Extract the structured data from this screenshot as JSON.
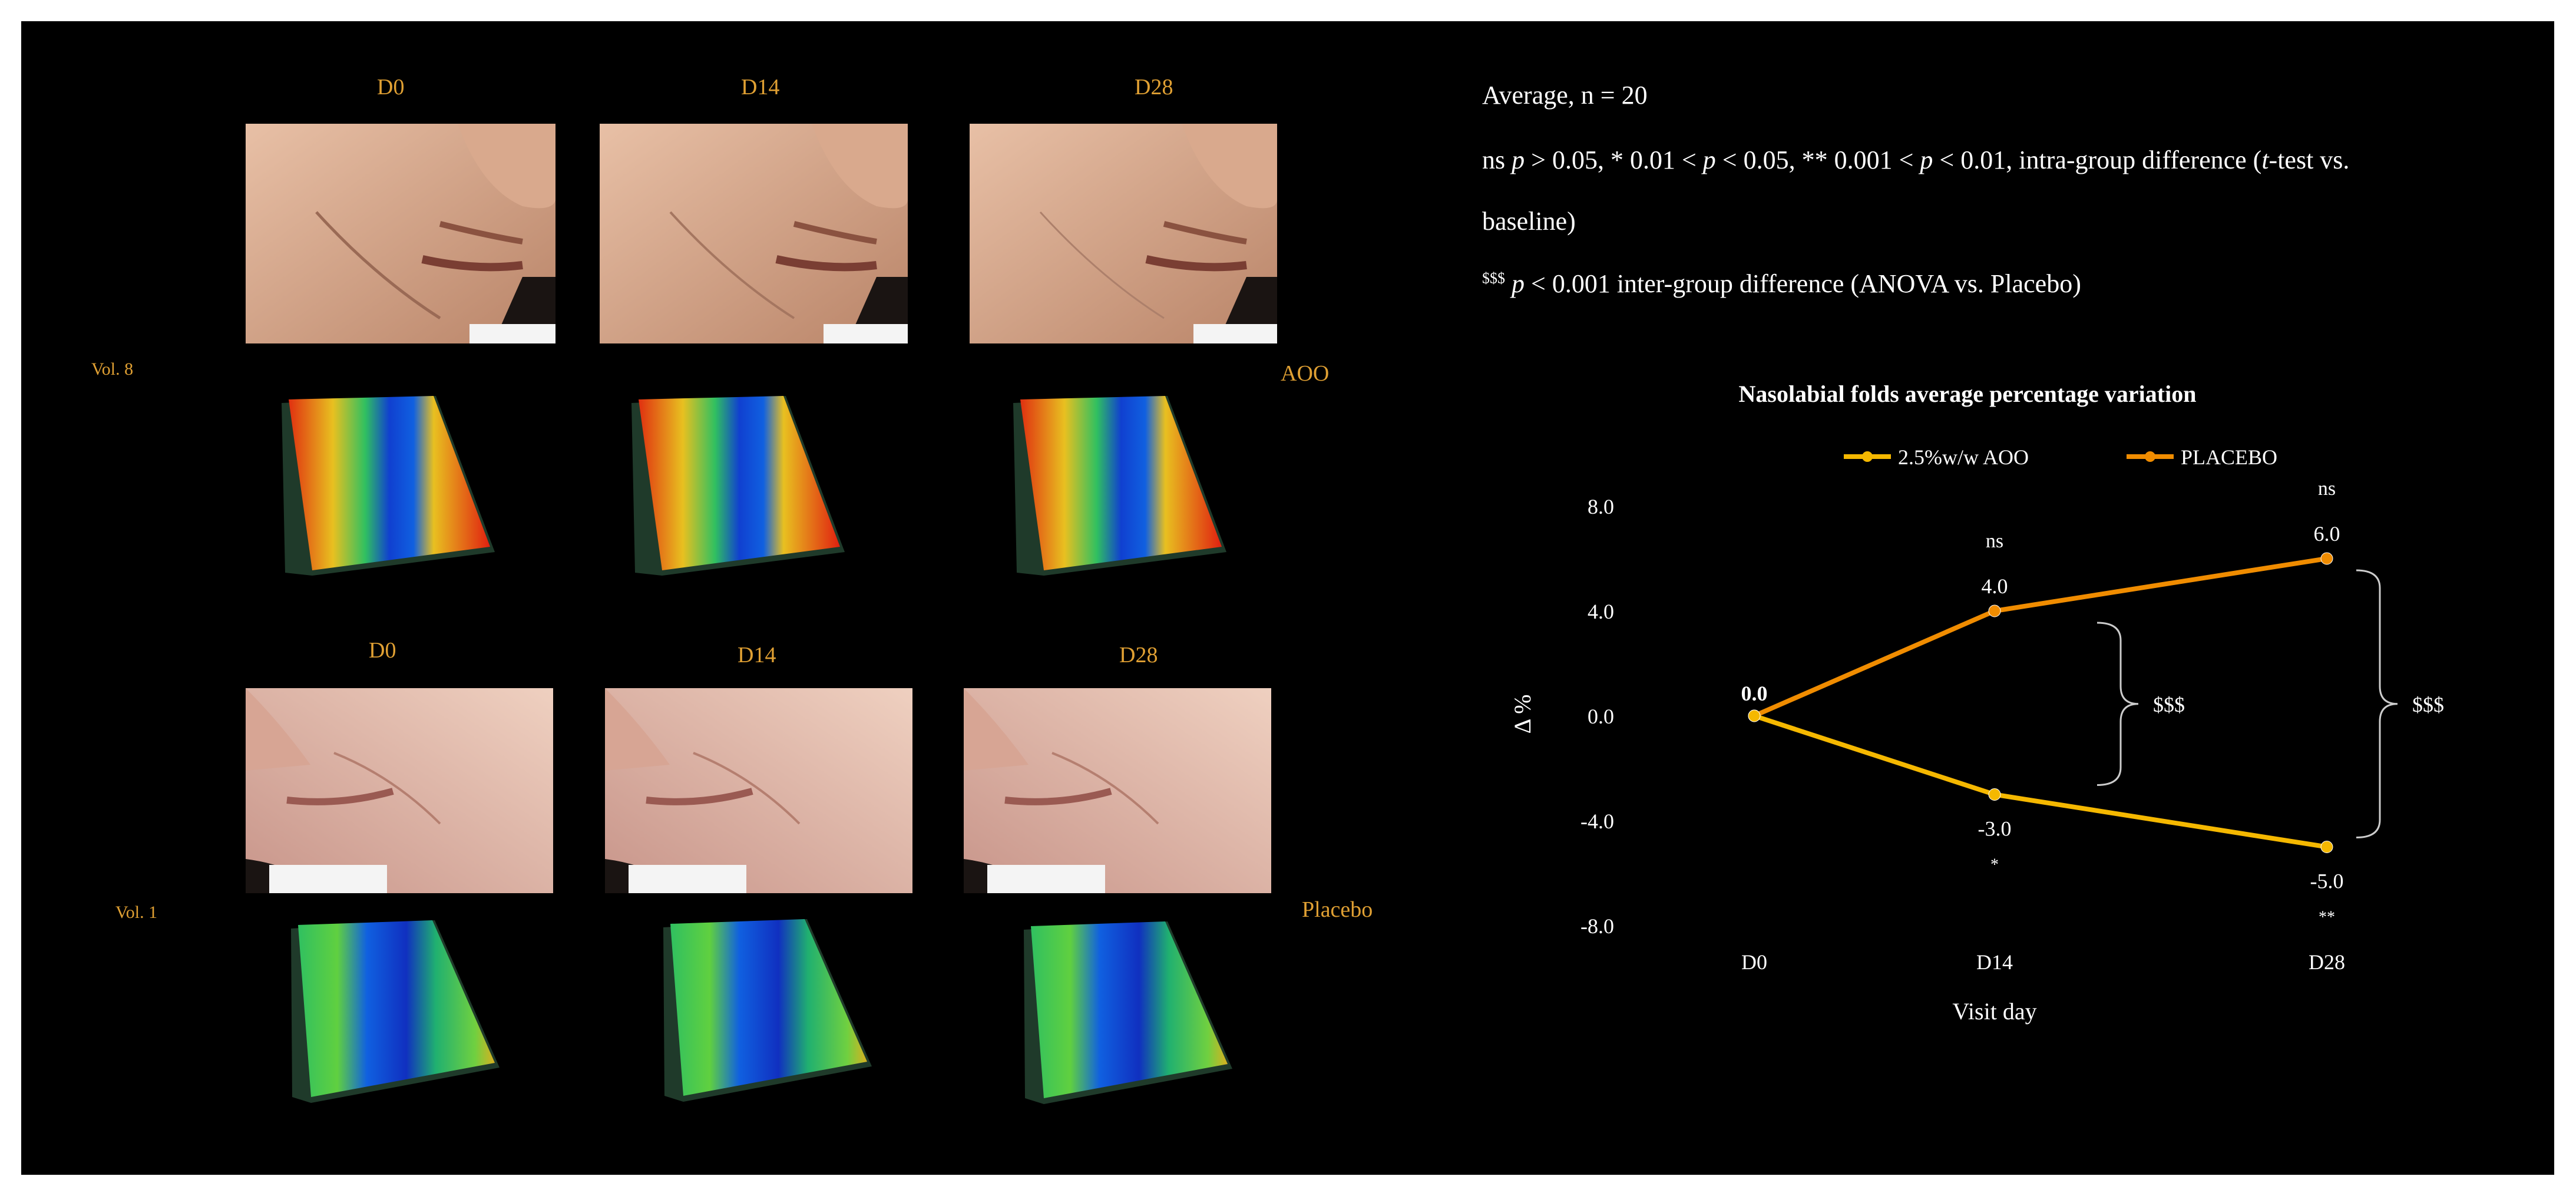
{
  "panels": {
    "aoo": {
      "subject": "Vol. 8",
      "group": "AOO",
      "days": [
        "D0",
        "D14",
        "D28"
      ]
    },
    "placebo": {
      "subject": "Vol. 1",
      "group": "Placebo",
      "days": [
        "D0",
        "D14",
        "D28"
      ]
    }
  },
  "notes": {
    "line1": "Average, n = 20",
    "line2_parts": [
      "ns ",
      "p",
      " > 0.05, * 0.01 < ",
      "p",
      " < 0.05, ** 0.001 < ",
      "p",
      " < 0.01, intra-group difference (",
      "t",
      "-test vs."
    ],
    "line3": "baseline)",
    "line4_sup": "$$$",
    "line4_parts": [
      " ",
      "p",
      " < 0.001 inter-group difference (ANOVA vs. Placebo)"
    ]
  },
  "colors": {
    "background": "#000000",
    "label_orange": "#e0a033",
    "aoo_series": "#f5b800",
    "placebo_series": "#f08c00",
    "text": "#ffffff"
  },
  "chart_data": {
    "type": "line",
    "title": "Nasolabial folds average percentage variation",
    "xlabel": "Visit day",
    "ylabel": "Δ %",
    "categories": [
      "D0",
      "D14",
      "D28"
    ],
    "ylim": [
      -8.0,
      8.0
    ],
    "yticks": [
      "8.0",
      "4.0",
      "0.0",
      "-4.0",
      "-8.0"
    ],
    "grid": false,
    "legend_position": "top",
    "series": [
      {
        "name": "2.5%w/w AOO",
        "values": [
          0.0,
          -3.0,
          -5.0
        ],
        "labels": [
          "0.0",
          "-3.0",
          "-5.0"
        ],
        "significance": [
          "",
          "*",
          "**"
        ]
      },
      {
        "name": "PLACEBO",
        "values": [
          0.0,
          4.0,
          6.0
        ],
        "labels": [
          "0.0",
          "4.0",
          "6.0"
        ],
        "significance": [
          "",
          "ns",
          "ns"
        ]
      }
    ],
    "brackets": [
      {
        "category": "D14",
        "label": "$$$"
      },
      {
        "category": "D28",
        "label": "$$$"
      }
    ]
  }
}
